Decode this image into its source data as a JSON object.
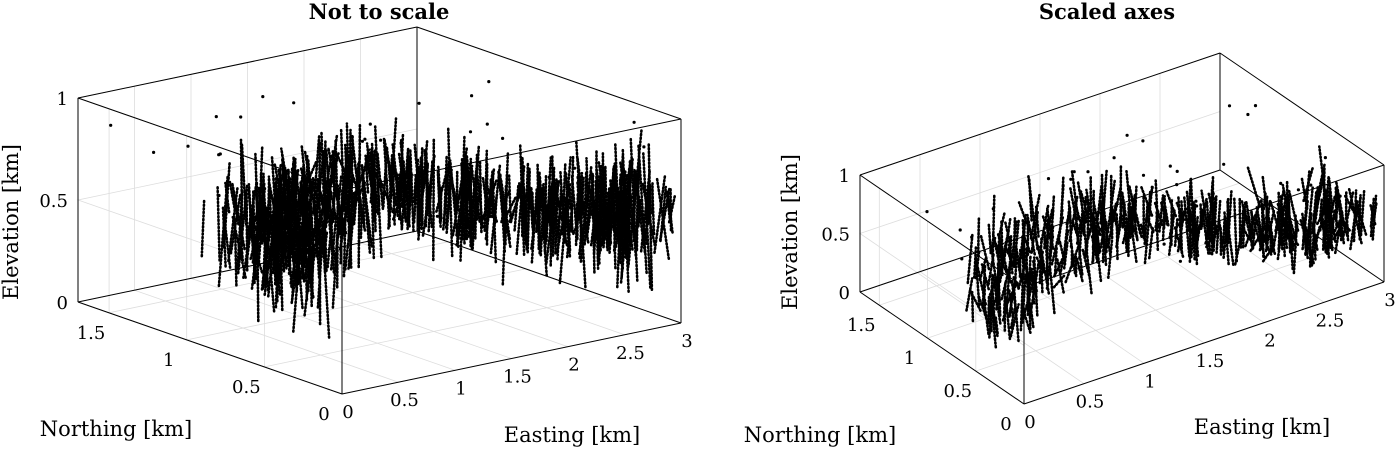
{
  "chart_data": [
    {
      "type": "scatter",
      "subtype": "3d",
      "title": "Not to scale",
      "xlabel": "Easting [km]",
      "ylabel": "Northing [km]",
      "zlabel": "Elevation [km]",
      "xlim": [
        0,
        3
      ],
      "ylim": [
        0,
        1.7
      ],
      "zlim": [
        0,
        1
      ],
      "xticks": [
        0,
        0.5,
        1,
        1.5,
        2,
        2.5,
        3
      ],
      "xtick_labels": [
        "0",
        "0.5",
        "1",
        "1.5",
        "2",
        "2.5",
        "3"
      ],
      "yticks": [
        0,
        0.5,
        1,
        1.5
      ],
      "ytick_labels": [
        "0",
        "0.5",
        "1",
        "1.5"
      ],
      "zticks": [
        0,
        0.5,
        1
      ],
      "ztick_labels": [
        "0",
        "0.5",
        "1"
      ],
      "grid": true,
      "aspect": "auto"
    },
    {
      "type": "scatter",
      "subtype": "3d",
      "title": "Scaled axes",
      "xlabel": "Easting [km]",
      "ylabel": "Northing [km]",
      "zlabel": "Elevation [km]",
      "xlim": [
        0,
        3
      ],
      "ylim": [
        0,
        1.7
      ],
      "zlim": [
        0,
        1
      ],
      "xticks": [
        0,
        0.5,
        1,
        1.5,
        2,
        2.5,
        3
      ],
      "xtick_labels": [
        "0",
        "0.5",
        "1",
        "1.5",
        "2",
        "2.5",
        "3"
      ],
      "yticks": [
        0,
        0.5,
        1,
        1.5
      ],
      "ytick_labels": [
        "0",
        "0.5",
        "1",
        "1.5"
      ],
      "zticks": [
        0,
        0.5,
        1
      ],
      "ztick_labels": [
        "0",
        "0.5",
        "1"
      ],
      "grid": true,
      "aspect": "equal"
    }
  ],
  "colors": {
    "markers": "#000000",
    "grid": "#dddddd",
    "box": "#000000"
  }
}
